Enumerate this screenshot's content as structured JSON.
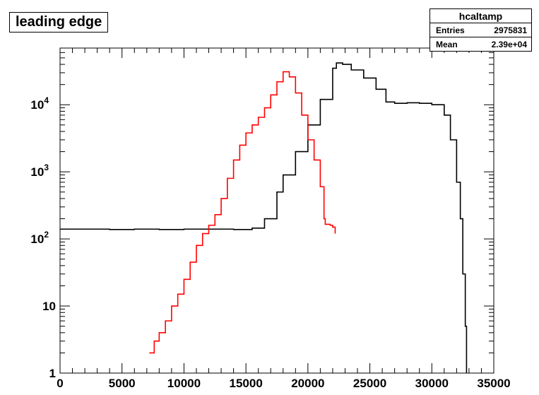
{
  "chart_data": {
    "type": "line",
    "title": "leading edge",
    "stats": {
      "name": "hcaltamp",
      "rows": [
        {
          "label": "Entries",
          "value": "2975831"
        },
        {
          "label": "Mean",
          "value": "2.39e+04"
        }
      ]
    },
    "x_range": [
      0,
      35000
    ],
    "y_range": [
      1,
      70000
    ],
    "y_scale": "log",
    "x_ticks": [
      "0",
      "5000",
      "10000",
      "15000",
      "20000",
      "25000",
      "30000",
      "35000"
    ],
    "y_ticks": [
      {
        "value": 1,
        "label": "1"
      },
      {
        "value": 10,
        "label": "10"
      },
      {
        "value": 100,
        "label": "10^2"
      },
      {
        "value": 1000,
        "label": "10^3"
      },
      {
        "value": 10000,
        "label": "10^4"
      }
    ],
    "series": [
      {
        "color": "#000000",
        "points": [
          [
            0,
            140
          ],
          [
            2000,
            140
          ],
          [
            4000,
            138
          ],
          [
            6000,
            140
          ],
          [
            8000,
            138
          ],
          [
            10000,
            140
          ],
          [
            12000,
            140
          ],
          [
            14000,
            138
          ],
          [
            15500,
            145
          ],
          [
            16500,
            200
          ],
          [
            17500,
            500
          ],
          [
            18000,
            900
          ],
          [
            19000,
            2000
          ],
          [
            20000,
            5000
          ],
          [
            21000,
            12000
          ],
          [
            22000,
            35000
          ],
          [
            22300,
            42000
          ],
          [
            22800,
            40000
          ],
          [
            23500,
            33000
          ],
          [
            24500,
            25000
          ],
          [
            25500,
            17000
          ],
          [
            26300,
            11000
          ],
          [
            27000,
            10500
          ],
          [
            28000,
            10700
          ],
          [
            29000,
            10500
          ],
          [
            30000,
            10000
          ],
          [
            31000,
            7000
          ],
          [
            31500,
            3000
          ],
          [
            32000,
            700
          ],
          [
            32300,
            200
          ],
          [
            32500,
            30
          ],
          [
            32700,
            5
          ],
          [
            32800,
            1
          ]
        ]
      },
      {
        "color": "#ff0000",
        "points": [
          [
            7200,
            2
          ],
          [
            7600,
            3
          ],
          [
            8000,
            4
          ],
          [
            8500,
            6
          ],
          [
            9000,
            10
          ],
          [
            9500,
            15
          ],
          [
            10000,
            25
          ],
          [
            10500,
            45
          ],
          [
            11000,
            80
          ],
          [
            11500,
            120
          ],
          [
            12000,
            160
          ],
          [
            12500,
            230
          ],
          [
            13000,
            400
          ],
          [
            13500,
            800
          ],
          [
            14000,
            1500
          ],
          [
            14500,
            2500
          ],
          [
            15000,
            3800
          ],
          [
            15500,
            5000
          ],
          [
            16000,
            6500
          ],
          [
            16500,
            9000
          ],
          [
            17000,
            14000
          ],
          [
            17500,
            22000
          ],
          [
            18000,
            31000
          ],
          [
            18500,
            26000
          ],
          [
            19000,
            15000
          ],
          [
            19500,
            7000
          ],
          [
            20000,
            3000
          ],
          [
            20500,
            1500
          ],
          [
            21000,
            600
          ],
          [
            21300,
            200
          ],
          [
            21400,
            165
          ],
          [
            21800,
            160
          ],
          [
            22000,
            150
          ],
          [
            22200,
            120
          ]
        ]
      }
    ]
  }
}
